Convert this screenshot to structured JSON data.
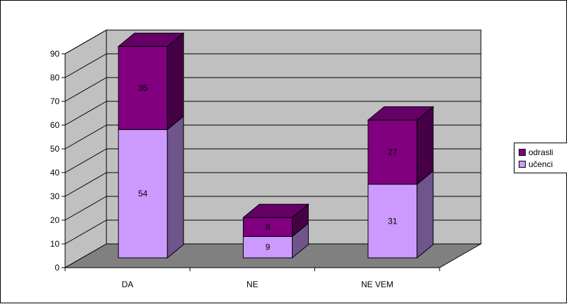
{
  "chart_data": {
    "type": "bar",
    "stacked": true,
    "three_d": true,
    "categories": [
      "DA",
      "NE",
      "NE VEM"
    ],
    "series": [
      {
        "name": "učenci",
        "values": [
          54,
          9,
          31
        ],
        "color": "#CC99FF"
      },
      {
        "name": "odrasli",
        "values": [
          35,
          8,
          27
        ],
        "color": "#800080"
      }
    ],
    "y_ticks": [
      "0",
      "10",
      "20",
      "30",
      "40",
      "50",
      "60",
      "70",
      "80",
      "90"
    ],
    "ylim": [
      0,
      90
    ],
    "grid": true,
    "legend_position": "right",
    "colors": {
      "wall": "#C0C0C0",
      "floor": "#808080"
    }
  }
}
